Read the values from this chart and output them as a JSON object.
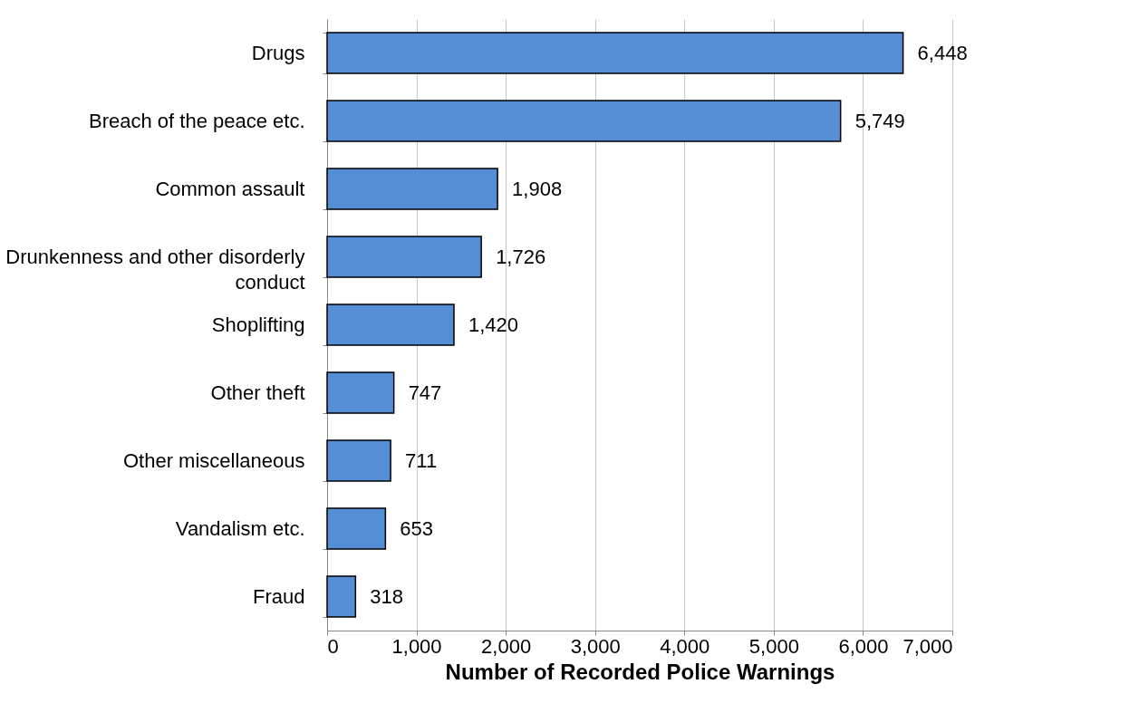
{
  "chart_data": {
    "type": "bar",
    "orientation": "horizontal",
    "xlabel": "Number of Recorded Police Warnings",
    "categories": [
      "Drugs",
      "Breach of the peace etc.",
      "Common assault",
      "Drunkenness and other disorderly conduct",
      "Shoplifting",
      "Other theft",
      "Other miscellaneous",
      "Vandalism etc.",
      "Fraud"
    ],
    "values": [
      6448,
      5749,
      1908,
      1726,
      1420,
      747,
      711,
      653,
      318
    ],
    "value_labels": [
      "6,448",
      "5,749",
      "1,908",
      "1,726",
      "1,420",
      "747",
      "711",
      "653",
      "318"
    ],
    "color": "#558ed5",
    "xlim": [
      0,
      7000
    ],
    "xticks": [
      0,
      {
        "value": 1000,
        "label": "1,000"
      },
      {
        "value": 2000,
        "label": "2,000"
      },
      {
        "value": 3000,
        "label": "3,000"
      },
      {
        "value": 4000,
        "label": "4,000"
      },
      {
        "value": 5000,
        "label": "5,000"
      },
      {
        "value": 6000,
        "label": "6,000"
      },
      {
        "value": 7000,
        "label": "7,000"
      }
    ],
    "grid": "x"
  }
}
